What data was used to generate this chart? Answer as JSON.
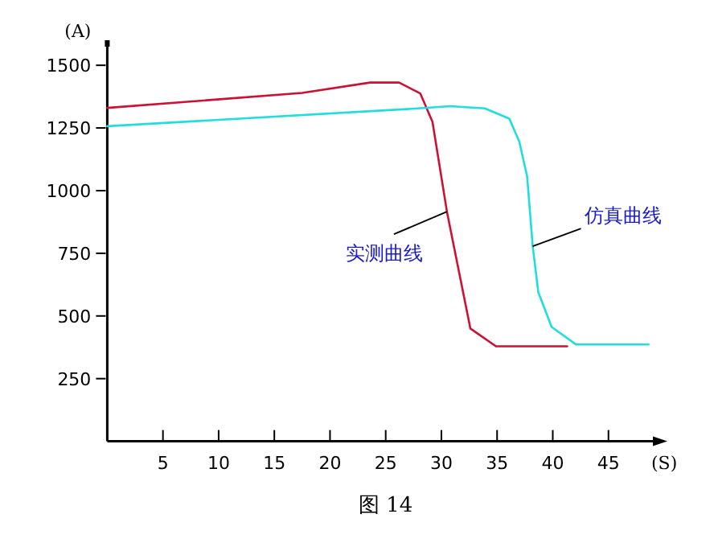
{
  "chart_data": {
    "type": "line",
    "title": "图 14",
    "xlabel": "(S)",
    "ylabel": "(A)",
    "xlim": [
      0,
      50
    ],
    "ylim": [
      0,
      1600
    ],
    "xticks": [
      5,
      10,
      15,
      20,
      25,
      30,
      35,
      40,
      45
    ],
    "yticks": [
      250,
      500,
      750,
      1000,
      1250,
      1500
    ],
    "grid": false,
    "marker": "none",
    "line_style": "solid",
    "series": [
      {
        "color": "#cc1133",
        "x": [
          0,
          17.5,
          23.6,
          26.2,
          28.1,
          29.2,
          30.5,
          32.6,
          34.9,
          41.3
        ],
        "values": [
          1330,
          1390,
          1431,
          1431,
          1388,
          1274,
          916,
          450,
          379,
          379
        ]
      },
      {
        "color": "#22dddd",
        "x": [
          0,
          27.9,
          30.8,
          33.9,
          36.1,
          37.0,
          37.7,
          38.2,
          38.7,
          39.9,
          42.1,
          48.6
        ],
        "values": [
          1257,
          1328,
          1337,
          1328,
          1287,
          1195,
          1056,
          778,
          595,
          456,
          386,
          386
        ]
      }
    ],
    "annotations": [
      {
        "text": "实测曲线",
        "x": 30.5,
        "y": 916
      },
      {
        "text": "仿真曲线",
        "x": 38.2,
        "y": 778
      }
    ]
  }
}
